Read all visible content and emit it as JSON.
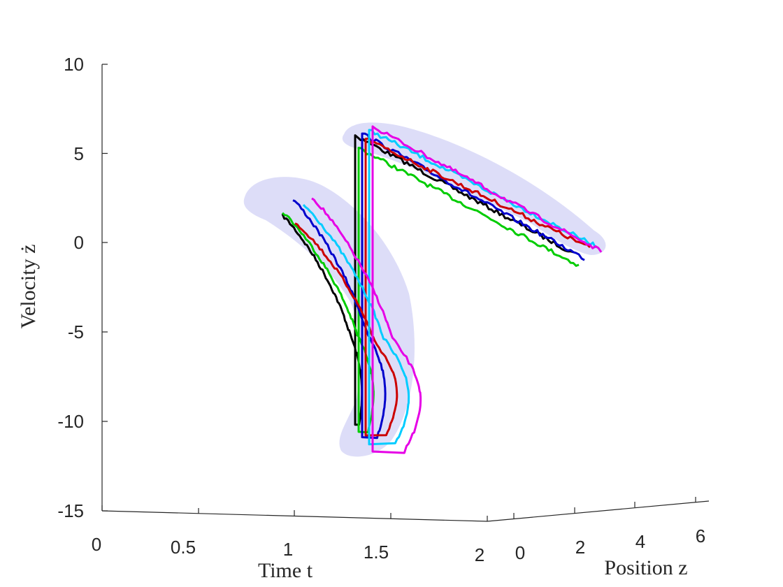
{
  "chart_data": {
    "type": "line",
    "projection": "3d",
    "xlabel": "Time t",
    "ylabel": "Position z",
    "zlabel": "Velocity ż",
    "xlim": [
      0,
      2
    ],
    "ylim": [
      -1,
      6.5
    ],
    "zlim": [
      -15,
      10
    ],
    "x_ticks": [
      "0",
      "0.5",
      "1",
      "1.5",
      "2"
    ],
    "y_ticks": [
      "0",
      "2",
      "4",
      "6"
    ],
    "z_ticks": [
      "10",
      "5",
      "0",
      "-5",
      "-10",
      "-15"
    ],
    "grid": false,
    "legend": "none",
    "colors": {
      "axis": "#262626",
      "tube": "#b3b3f0",
      "series": [
        "#000000",
        "#00cc00",
        "#0000cc",
        "#cc0000",
        "#00ccff",
        "#e600e6"
      ]
    },
    "series": [
      {
        "color": "#000000",
        "t0": 0.9,
        "z0": 1.5,
        "impact_velocity": -10.2,
        "restart": 6.0,
        "end": -0.6
      },
      {
        "color": "#00cc00",
        "t0": 0.8,
        "z0": 1.7,
        "impact_velocity": -10.6,
        "restart": 5.3,
        "end": -1.3
      },
      {
        "color": "#0000cc",
        "t0": 0.95,
        "z0": 2.4,
        "impact_velocity": -10.9,
        "restart": 6.1,
        "end": -0.9
      },
      {
        "color": "#cc0000",
        "t0": 0.9,
        "z0": 1.1,
        "impact_velocity": -10.8,
        "restart": 5.8,
        "end": -0.3
      },
      {
        "color": "#00ccff",
        "t0": 1.0,
        "z0": 2.1,
        "impact_velocity": -11.3,
        "restart": 6.3,
        "end": -0.2
      },
      {
        "color": "#e600e6",
        "t0": 1.1,
        "z0": 2.5,
        "impact_velocity": -11.7,
        "restart": 6.5,
        "end": -0.5
      }
    ]
  }
}
